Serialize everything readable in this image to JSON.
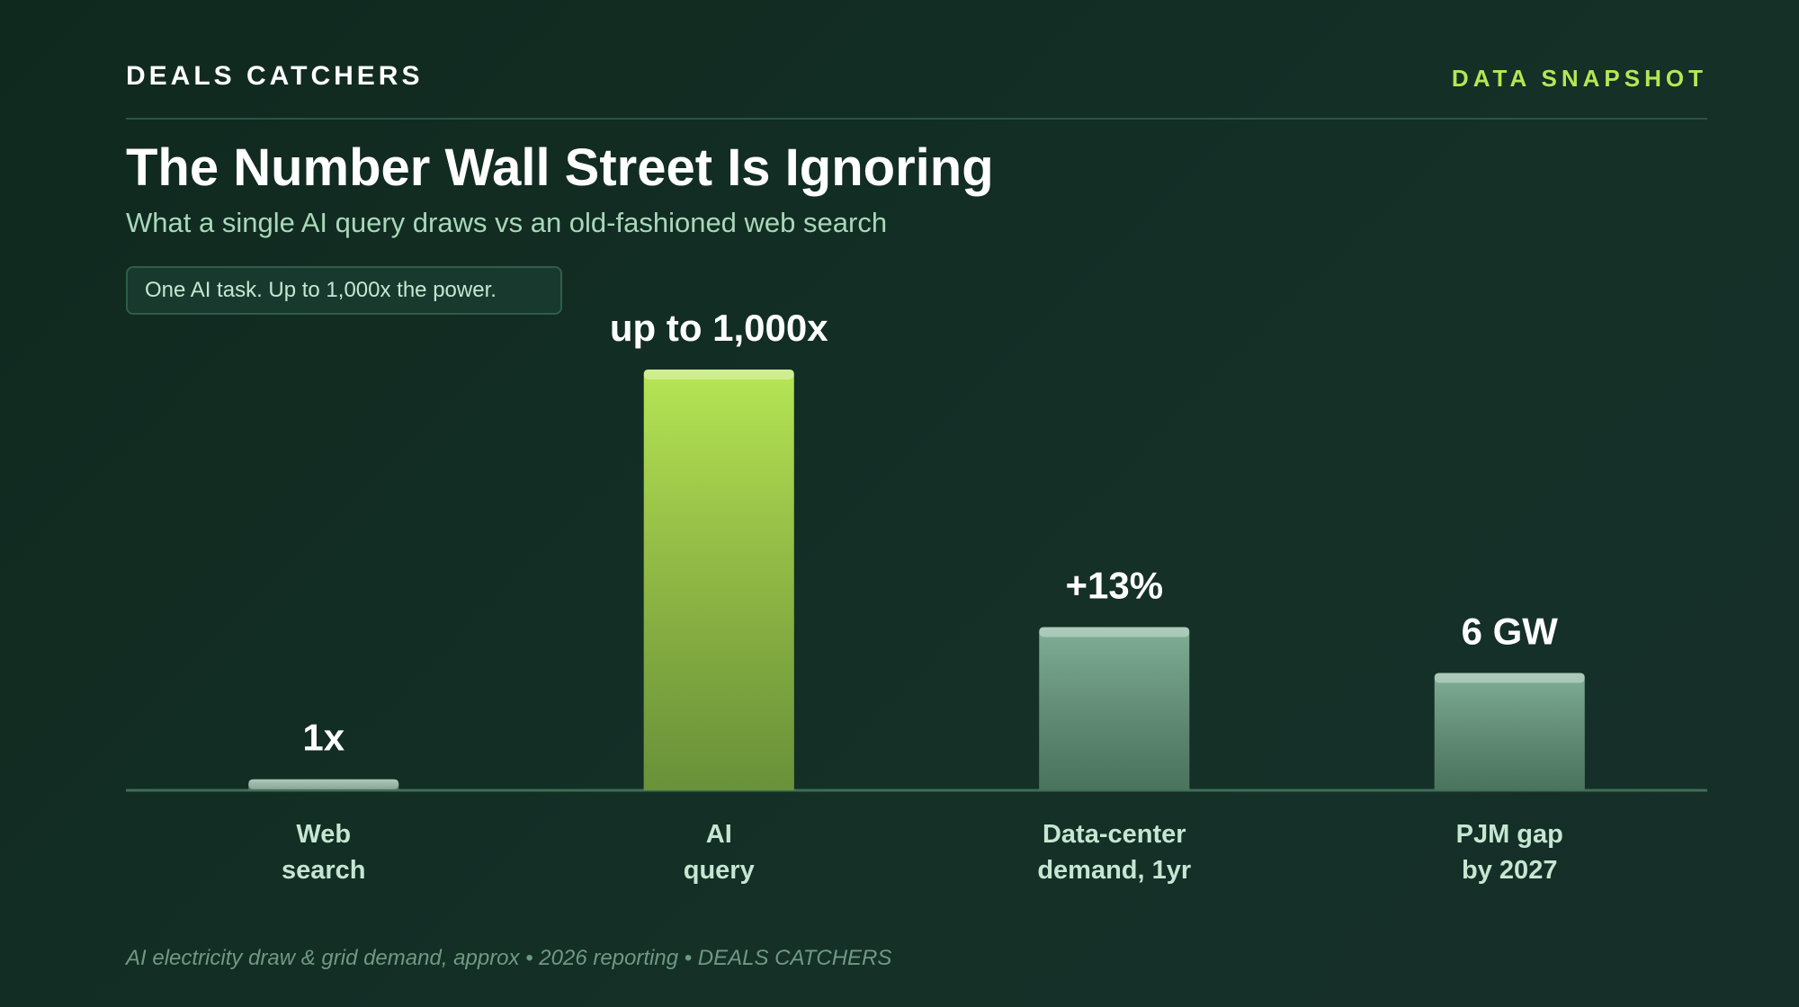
{
  "chart_data": {
    "type": "bar",
    "brand": "DEALS CATCHERS",
    "tag": "DATA SNAPSHOT",
    "title": "The Number Wall Street Is Ignoring",
    "subtitle": "What a single AI query draws vs an old-fashioned web search",
    "annotation": "One AI task. Up to 1,000x the power.",
    "categories": [
      "Web\nsearch",
      "AI\nquery",
      "Data-center\ndemand, 1yr",
      "PJM gap\nby 2027"
    ],
    "values": [
      1,
      1000,
      13,
      6
    ],
    "value_labels": [
      "1x",
      "up to 1,000x",
      "+13%",
      "6 GW"
    ],
    "colors": [
      "#7fb096",
      "#b6e655",
      "#7fb096",
      "#7fb096"
    ],
    "log_scale": true,
    "ylim": [
      0.83,
      1000
    ],
    "footnote": "AI electricity draw & grid demand, approx • 2026 reporting • DEALS CATCHERS"
  }
}
